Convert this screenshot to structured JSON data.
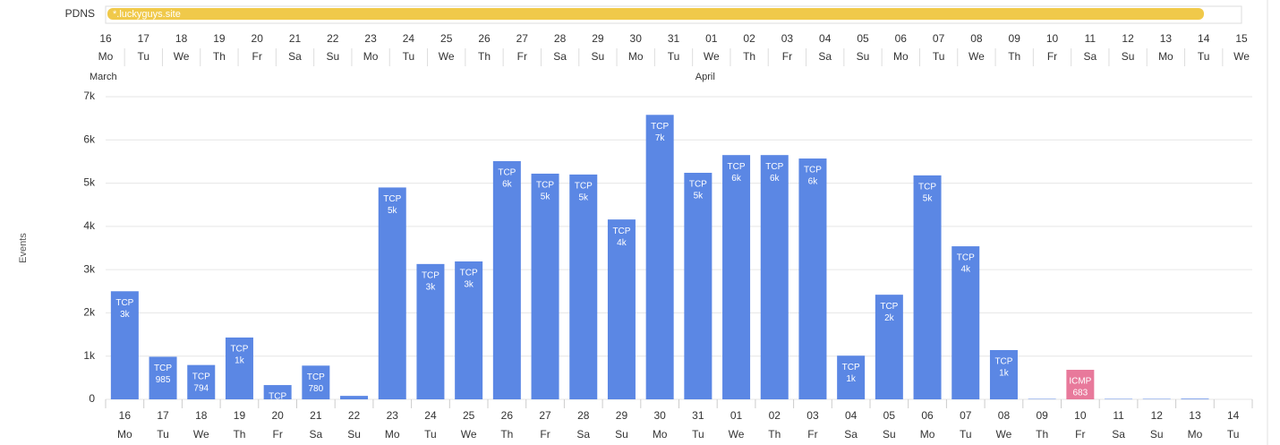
{
  "timeline": {
    "label": "PDNS",
    "entry": "*.luckyguys.site",
    "days": [
      "16",
      "17",
      "18",
      "19",
      "20",
      "21",
      "22",
      "23",
      "24",
      "25",
      "26",
      "27",
      "28",
      "29",
      "30",
      "31",
      "01",
      "02",
      "03",
      "04",
      "05",
      "06",
      "07",
      "08",
      "09",
      "10",
      "11",
      "12",
      "13",
      "14",
      "15"
    ],
    "weekdays": [
      "Mo",
      "Tu",
      "We",
      "Th",
      "Fr",
      "Sa",
      "Su",
      "Mo",
      "Tu",
      "We",
      "Th",
      "Fr",
      "Sa",
      "Su",
      "Mo",
      "Tu",
      "We",
      "Th",
      "Fr",
      "Sa",
      "Su",
      "Mo",
      "Tu",
      "We",
      "Th",
      "Fr",
      "Sa",
      "Su",
      "Mo",
      "Tu",
      "We"
    ],
    "months": [
      {
        "name": "March",
        "day": 0
      },
      {
        "name": "April",
        "day": 16
      }
    ]
  },
  "chart_data": {
    "type": "bar",
    "stacked": true,
    "y_label": "Events",
    "categories": [
      "16",
      "17",
      "18",
      "19",
      "20",
      "21",
      "22",
      "23",
      "24",
      "25",
      "26",
      "27",
      "28",
      "29",
      "30",
      "31",
      "01",
      "02",
      "03",
      "04",
      "05",
      "06",
      "07",
      "08",
      "09",
      "10",
      "11",
      "12",
      "13",
      "14"
    ],
    "weekdays": [
      "Mo",
      "Tu",
      "We",
      "Th",
      "Fr",
      "Sa",
      "Su",
      "Mo",
      "Tu",
      "We",
      "Th",
      "Fr",
      "Sa",
      "Su",
      "Mo",
      "Tu",
      "We",
      "Th",
      "Fr",
      "Sa",
      "Su",
      "Mo",
      "Tu",
      "We",
      "Th",
      "Fr",
      "Sa",
      "Su",
      "Mo",
      "Tu"
    ],
    "series": [
      {
        "name": "TCP",
        "color": "#5b87e4",
        "values": [
          2500,
          985,
          794,
          1430,
          330,
          780,
          80,
          4900,
          3130,
          3190,
          5510,
          5220,
          5200,
          4160,
          6580,
          5240,
          5650,
          5650,
          5570,
          1010,
          2420,
          5180,
          3540,
          1140,
          10,
          null,
          10,
          10,
          15,
          0
        ],
        "value_labels": [
          "3k",
          "985",
          "794",
          "1k",
          null,
          "780",
          null,
          "5k",
          "3k",
          "3k",
          "6k",
          "5k",
          "5k",
          "4k",
          "7k",
          "5k",
          "6k",
          "6k",
          "6k",
          "1k",
          "2k",
          "5k",
          "4k",
          "1k",
          null,
          null,
          null,
          null,
          null,
          null
        ]
      },
      {
        "name": "ICMP",
        "color": "#e8799b",
        "values": [
          null,
          null,
          null,
          null,
          null,
          null,
          null,
          null,
          null,
          null,
          null,
          null,
          null,
          null,
          null,
          null,
          null,
          null,
          null,
          null,
          null,
          null,
          null,
          null,
          null,
          683,
          null,
          null,
          null,
          null
        ],
        "value_labels": [
          null,
          null,
          null,
          null,
          null,
          null,
          null,
          null,
          null,
          null,
          null,
          null,
          null,
          null,
          null,
          null,
          null,
          null,
          null,
          null,
          null,
          null,
          null,
          null,
          null,
          "683",
          null,
          null,
          null,
          null
        ]
      }
    ],
    "ylim": [
      0,
      7000
    ],
    "yticks": [
      0,
      {
        "value": 1000,
        "label": "1k"
      },
      {
        "value": 2000,
        "label": "2k"
      },
      {
        "value": 3000,
        "label": "3k"
      },
      {
        "value": 4000,
        "label": "4k"
      },
      {
        "value": 5000,
        "label": "5k"
      },
      {
        "value": 6000,
        "label": "6k"
      },
      {
        "value": 7000,
        "label": "7k"
      }
    ],
    "grid": true
  }
}
